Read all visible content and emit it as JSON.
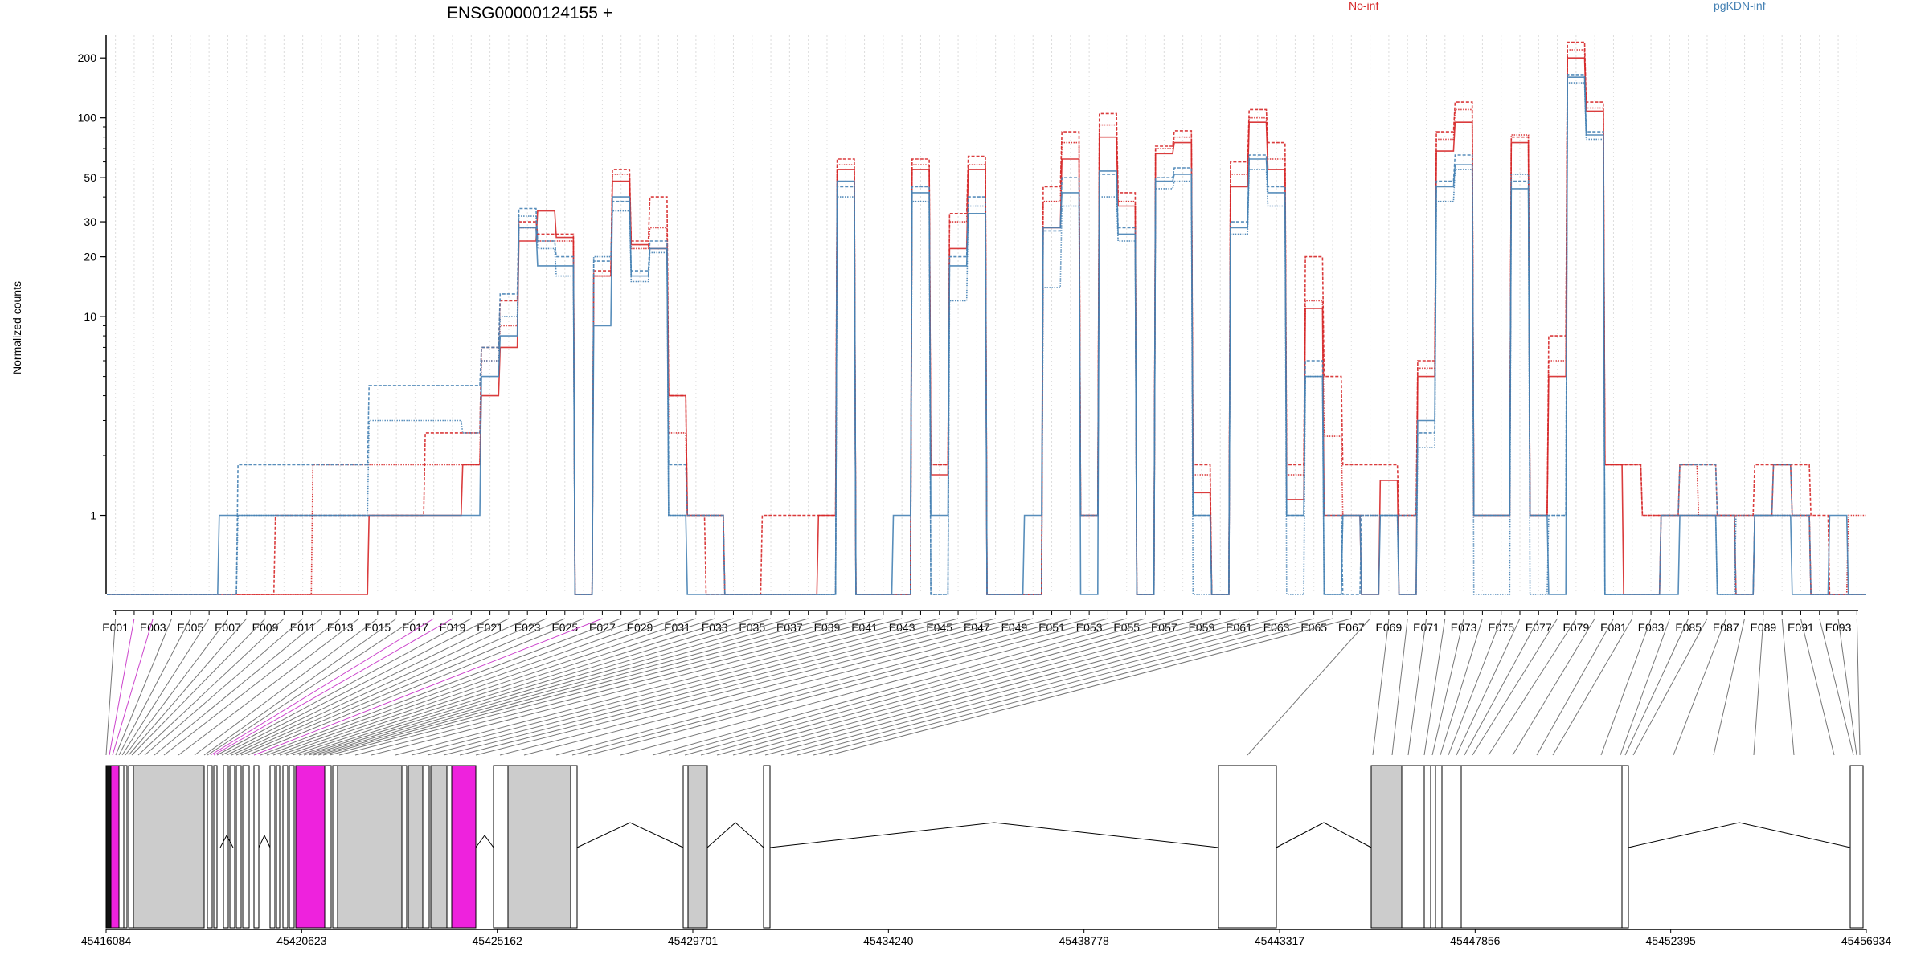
{
  "chart_data": {
    "type": "line",
    "title": "ENSG00000124155 +",
    "ylabel": "Normalized counts",
    "y_scale": "log",
    "ylim": [
      0.4,
      260
    ],
    "y_ticks": [
      1,
      10,
      20,
      30,
      50,
      100,
      200
    ],
    "y_tick_labels": [
      "1",
      "10",
      "20",
      "30",
      "50",
      "100",
      "200"
    ],
    "grid": "vertical-dotted",
    "legend": [
      {
        "name": "No-inf",
        "color": "#d62728"
      },
      {
        "name": "pgKDN-inf",
        "color": "#4682b4"
      }
    ],
    "exon_count": 94,
    "x_tick_labels": [
      "E001",
      "E003",
      "E005",
      "E007",
      "E009",
      "E011",
      "E013",
      "E015",
      "E017",
      "E019",
      "E021",
      "E023",
      "E025",
      "E027",
      "E029",
      "E031",
      "E033",
      "E035",
      "E037",
      "E039",
      "E041",
      "E043",
      "E045",
      "E047",
      "E049",
      "E051",
      "E053",
      "E055",
      "E057",
      "E059",
      "E061",
      "E063",
      "E065",
      "E067",
      "E069",
      "E071",
      "E073",
      "E075",
      "E077",
      "E079",
      "E081",
      "E083",
      "E085",
      "E087",
      "E089",
      "E091",
      "E093"
    ],
    "series": [
      {
        "group": "No-inf",
        "values": [
          0.4,
          0.4,
          0.4,
          0.4,
          0.4,
          0.4,
          0.4,
          0.4,
          0.4,
          0.4,
          0.4,
          0.4,
          0.4,
          0.4,
          1,
          1,
          1,
          1,
          1,
          1.8,
          4,
          7,
          24,
          34,
          25,
          0.4,
          16,
          48,
          23,
          22,
          4,
          1,
          1,
          0.4,
          0.4,
          0.4,
          0.4,
          0.4,
          1,
          55,
          0.4,
          0.4,
          0.4,
          55,
          1.6,
          22,
          55,
          0.4,
          0.4,
          0.4,
          28,
          62,
          1,
          80,
          36,
          0.4,
          66,
          75,
          1.3,
          0.4,
          45,
          95,
          55,
          1.2,
          11,
          1,
          1,
          0.4,
          1.5,
          0.4,
          5,
          68,
          95,
          1,
          1,
          75,
          1,
          5,
          200,
          108,
          1.8,
          0.4,
          0.4,
          1,
          1,
          1,
          1,
          0.4,
          1,
          1.8,
          1,
          0.4,
          0.4,
          0.4
        ]
      },
      {
        "group": "No-inf",
        "values": [
          0.4,
          0.4,
          0.4,
          0.4,
          0.4,
          0.4,
          0.4,
          0.4,
          0.4,
          1,
          1,
          1,
          1,
          1,
          1,
          1,
          1,
          2.6,
          2.6,
          2.6,
          7,
          12,
          30,
          26,
          26,
          0.4,
          17,
          55,
          24,
          40,
          4,
          1,
          0.4,
          0.4,
          0.4,
          1,
          1,
          1,
          1,
          62,
          0.4,
          0.4,
          0.4,
          62,
          1.8,
          33,
          64,
          0.4,
          0.4,
          0.4,
          45,
          85,
          1,
          105,
          42,
          0.4,
          72,
          86,
          1.8,
          0.4,
          60,
          110,
          75,
          1.8,
          20,
          5,
          1.8,
          1.8,
          1.8,
          1,
          6,
          85,
          120,
          1,
          1,
          80,
          1,
          8,
          240,
          120,
          1.8,
          1.8,
          1,
          1,
          1.8,
          1.8,
          1,
          1,
          1.8,
          1.8,
          1.8,
          1,
          0.4,
          0.4
        ]
      },
      {
        "group": "No-inf",
        "values": [
          0.4,
          0.4,
          0.4,
          0.4,
          0.4,
          0.4,
          0.4,
          0.4,
          0.4,
          0.4,
          0.4,
          1.8,
          1.8,
          1.8,
          1.8,
          1.8,
          1.8,
          1.8,
          1.8,
          1.8,
          6,
          9,
          28,
          24,
          24,
          0.4,
          16,
          52,
          22,
          28,
          2.6,
          1,
          1,
          0.4,
          0.4,
          0.4,
          0.4,
          0.4,
          0.4,
          58,
          0.4,
          0.4,
          0.4,
          58,
          1.8,
          30,
          58,
          0.4,
          0.4,
          0.4,
          38,
          75,
          1,
          92,
          38,
          0.4,
          70,
          80,
          1.6,
          0.4,
          52,
          100,
          62,
          1.6,
          12,
          2.5,
          1,
          1,
          1,
          1,
          5.5,
          78,
          110,
          1,
          1,
          82,
          1,
          6,
          220,
          112,
          1.8,
          1.8,
          1,
          1,
          1.8,
          1,
          1,
          1,
          1,
          1,
          1,
          0.4,
          0.4,
          1
        ]
      },
      {
        "group": "pgKDN-inf",
        "values": [
          0.4,
          0.4,
          0.4,
          0.4,
          0.4,
          0.4,
          1,
          1,
          1,
          1,
          1,
          1,
          1,
          1,
          1,
          1,
          1,
          1,
          1,
          1,
          5,
          8,
          28,
          18,
          18,
          0.4,
          9,
          40,
          16,
          22,
          1,
          0.4,
          0.4,
          0.4,
          0.4,
          0.4,
          0.4,
          0.4,
          0.4,
          48,
          0.4,
          0.4,
          1,
          42,
          1,
          18,
          33,
          0.4,
          0.4,
          1,
          28,
          42,
          0.4,
          54,
          26,
          0.4,
          48,
          52,
          1,
          0.4,
          28,
          62,
          42,
          1,
          5,
          0.4,
          1,
          0.4,
          1,
          0.4,
          3,
          45,
          58,
          1,
          1,
          44,
          1,
          0.4,
          160,
          82,
          0.4,
          0.4,
          0.4,
          0.4,
          1,
          1,
          0.4,
          0.4,
          1,
          1,
          0.4,
          0.4,
          1,
          0.4
        ]
      },
      {
        "group": "pgKDN-inf",
        "values": [
          0.4,
          0.4,
          0.4,
          0.4,
          0.4,
          0.4,
          0.4,
          1.8,
          1.8,
          1.8,
          1.8,
          1.8,
          1.8,
          1.8,
          4.5,
          4.5,
          4.5,
          4.5,
          4.5,
          4.5,
          7,
          13,
          35,
          24,
          20,
          0.4,
          19,
          38,
          17,
          24,
          1.8,
          1,
          1,
          0.4,
          0.4,
          0.4,
          0.4,
          0.4,
          0.4,
          45,
          0.4,
          0.4,
          0.4,
          45,
          0.4,
          20,
          40,
          0.4,
          0.4,
          0.4,
          27,
          50,
          1,
          52,
          28,
          0.4,
          50,
          56,
          1,
          0.4,
          30,
          65,
          45,
          1,
          6,
          1,
          0.4,
          1,
          1,
          1,
          2.6,
          48,
          65,
          1,
          1,
          48,
          1,
          1,
          165,
          85,
          0.4,
          0.4,
          0.4,
          1,
          1.8,
          1.8,
          1,
          0.4,
          1,
          1.8,
          1,
          0.4,
          0.4,
          0.4
        ]
      },
      {
        "group": "pgKDN-inf",
        "values": [
          0.4,
          0.4,
          0.4,
          0.4,
          0.4,
          0.4,
          0.4,
          1,
          1,
          1,
          1,
          1,
          1,
          1,
          3,
          3,
          3,
          3,
          3,
          2.6,
          6,
          10,
          32,
          22,
          16,
          0.4,
          20,
          34,
          15,
          21,
          1,
          1,
          1,
          0.4,
          0.4,
          0.4,
          0.4,
          0.4,
          0.4,
          40,
          0.4,
          0.4,
          0.4,
          38,
          0.4,
          12,
          36,
          0.4,
          0.4,
          0.4,
          14,
          36,
          1,
          40,
          24,
          0.4,
          44,
          48,
          0.4,
          0.4,
          26,
          55,
          36,
          0.4,
          5,
          0.4,
          1,
          1,
          1,
          0.4,
          2.2,
          38,
          55,
          0.4,
          0.4,
          52,
          0.4,
          1,
          150,
          78,
          0.4,
          0.4,
          0.4,
          1,
          1,
          1,
          0.4,
          1,
          1,
          1,
          1,
          0.4,
          0.4,
          0.4
        ]
      }
    ],
    "gene_axis": {
      "tick_labels": [
        "45416084",
        "45420623",
        "45425162",
        "45429701",
        "45434240",
        "45438778",
        "45443317",
        "45447856",
        "45452395",
        "45456934"
      ]
    }
  }
}
